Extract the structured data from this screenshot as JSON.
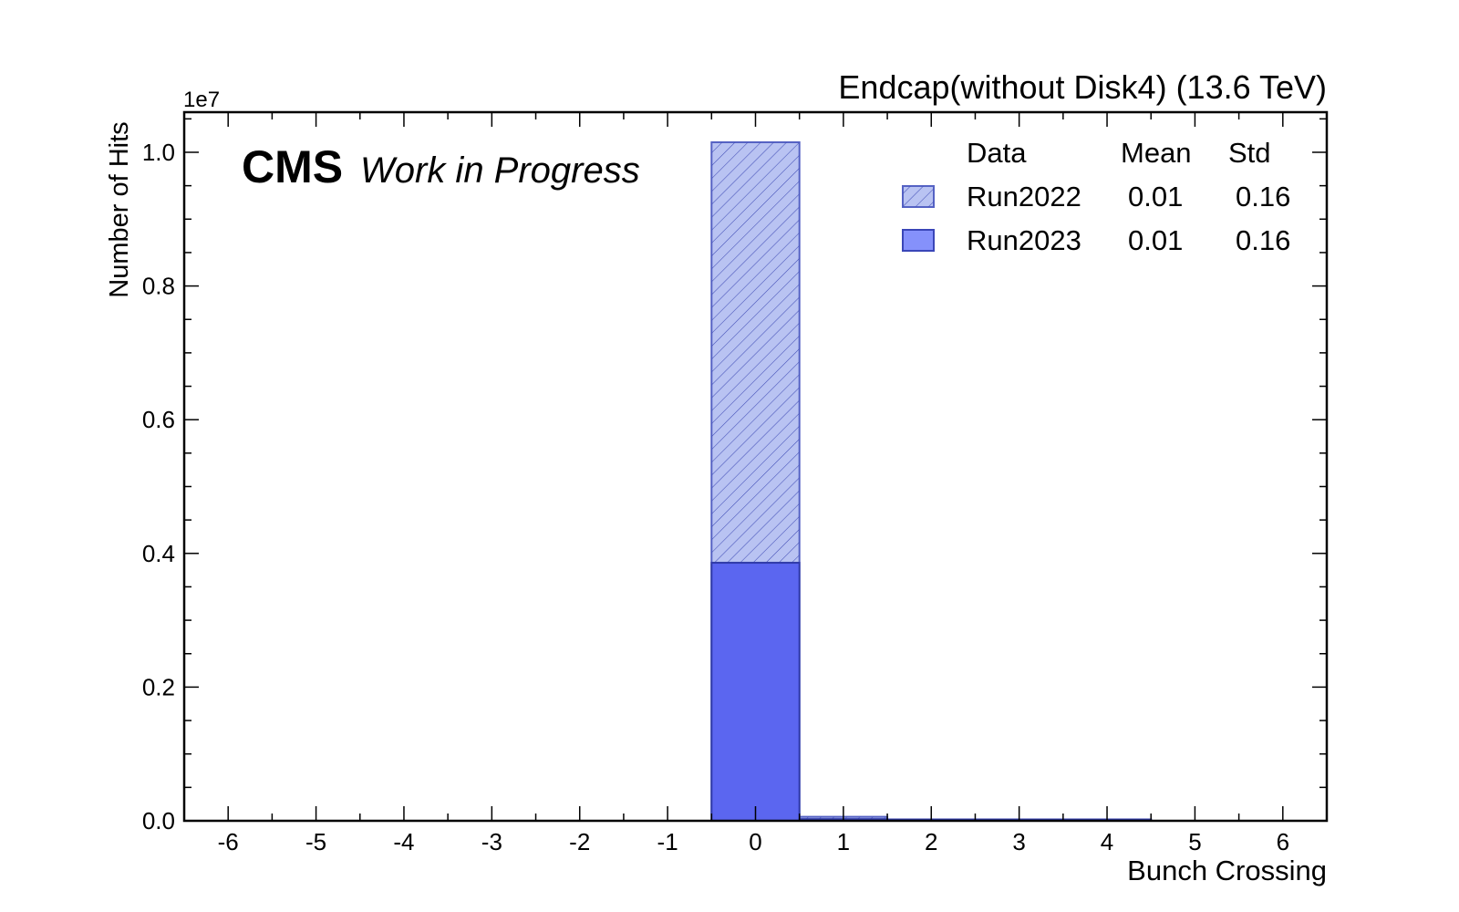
{
  "chart_data": {
    "type": "bar",
    "title": "Endcap(without Disk4) (13.6 TeV)",
    "experiment_label": "CMS",
    "status_label": "Work in Progress",
    "xlabel": "Bunch Crossing",
    "ylabel": "Number of Hits",
    "y_scale_label": "1e7",
    "y_scale": 10000000,
    "xlim": [
      -6.5,
      6.5
    ],
    "ylim": [
      0,
      10600000
    ],
    "x_ticks": [
      "-6",
      "-5",
      "-4",
      "-3",
      "-2",
      "-1",
      "0",
      "1",
      "2",
      "3",
      "4",
      "5",
      "6"
    ],
    "y_ticks": [
      "0.0",
      "0.2",
      "0.4",
      "0.6",
      "0.8",
      "1.0"
    ],
    "categories": [
      -6,
      -5,
      -4,
      -3,
      -2,
      -1,
      0,
      1,
      2,
      3,
      4,
      5,
      6
    ],
    "series": [
      {
        "name": "Run2022",
        "mean": "0.01",
        "std": "0.16",
        "color": "#b9c3f2",
        "edge_color": "#5562c4",
        "hatched": true,
        "values": [
          0,
          0,
          0,
          0,
          0,
          0,
          10150000,
          60000,
          5000,
          5000,
          15000,
          0,
          0
        ]
      },
      {
        "name": "Run2023",
        "mean": "0.01",
        "std": "0.16",
        "color": "#5b66f0",
        "edge_color": "#2f3aa8",
        "hatched": false,
        "values": [
          0,
          0,
          0,
          0,
          0,
          0,
          3860000,
          25000,
          2000,
          2000,
          6000,
          0,
          0
        ]
      }
    ],
    "legend": {
      "location": "top-right",
      "headers": [
        "Data",
        "Mean",
        "Std"
      ]
    }
  }
}
